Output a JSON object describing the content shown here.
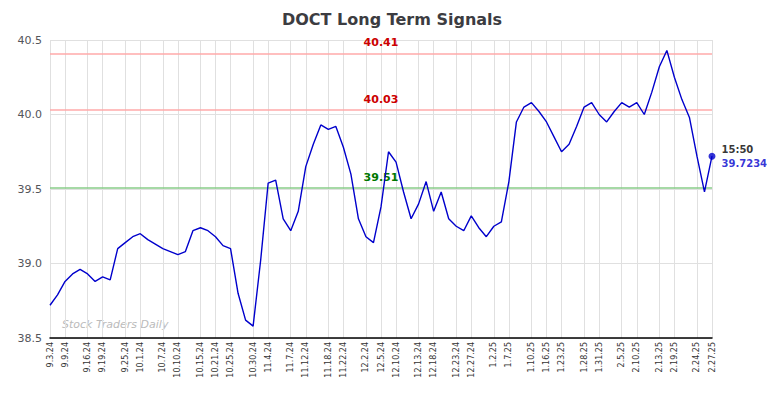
{
  "chart_data": {
    "type": "line",
    "title": "DOCT Long Term Signals",
    "categories": [
      "9.3.24",
      null,
      "9.9.24",
      null,
      null,
      "9.16.24",
      null,
      "9.19.24",
      null,
      null,
      "9.25.24",
      null,
      "10.1.24",
      null,
      null,
      "10.7.24",
      null,
      "10.10.24",
      null,
      null,
      "10.15.24",
      null,
      "10.21.24",
      null,
      "10.25.24",
      null,
      null,
      "10.30.24",
      null,
      "11.4.24",
      null,
      null,
      "11.7.24",
      null,
      "11.12.24",
      null,
      null,
      "11.18.24",
      null,
      "11.22.24",
      null,
      null,
      "12.2.24",
      null,
      "12.5.24",
      null,
      "12.10.24",
      null,
      null,
      "12.13.24",
      null,
      "12.18.24",
      null,
      null,
      "12.23.24",
      null,
      "12.27.24",
      null,
      null,
      "1.2.25",
      null,
      "1.7.25",
      null,
      null,
      "1.10.25",
      null,
      "1.16.25",
      null,
      "1.23.25",
      null,
      null,
      "1.28.25",
      null,
      "1.31.25",
      null,
      null,
      "2.5.25",
      null,
      "2.10.25",
      null,
      null,
      "2.13.25",
      null,
      "2.19.25",
      null,
      null,
      "2.24.25",
      null,
      "2.27.25"
    ],
    "values": [
      38.72,
      38.79,
      38.88,
      38.93,
      38.96,
      38.93,
      38.88,
      38.91,
      38.89,
      39.1,
      39.14,
      39.18,
      39.2,
      39.16,
      39.13,
      39.1,
      39.08,
      39.06,
      39.08,
      39.22,
      39.24,
      39.22,
      39.18,
      39.12,
      39.1,
      38.8,
      38.62,
      38.58,
      39.02,
      39.54,
      39.56,
      39.3,
      39.22,
      39.35,
      39.65,
      39.8,
      39.93,
      39.9,
      39.92,
      39.78,
      39.6,
      39.3,
      39.18,
      39.14,
      39.38,
      39.75,
      39.68,
      39.48,
      39.3,
      39.4,
      39.55,
      39.35,
      39.48,
      39.3,
      39.25,
      39.22,
      39.32,
      39.24,
      39.18,
      39.25,
      39.28,
      39.55,
      39.95,
      40.05,
      40.08,
      40.02,
      39.95,
      39.85,
      39.75,
      39.8,
      39.92,
      40.05,
      40.08,
      40.0,
      39.95,
      40.02,
      40.08,
      40.05,
      40.08,
      40.0,
      40.15,
      40.32,
      40.43,
      40.25,
      40.1,
      39.98,
      39.72,
      39.48,
      39.72
    ],
    "color": "#0000cc",
    "ylim": [
      38.5,
      40.5
    ],
    "yticks": [
      38.5,
      {
        "value": 39.0,
        "label": "39.0"
      },
      39.5,
      {
        "value": 40.0,
        "label": "40.0"
      },
      40.5
    ],
    "grid": true,
    "reference_lines": [
      {
        "value": 40.41,
        "label": "40.41",
        "color": "#ffaaaa",
        "label_color": "#cc0000"
      },
      {
        "value": 40.03,
        "label": "40.03",
        "color": "#ffaaaa",
        "label_color": "#cc0000"
      },
      {
        "value": 39.51,
        "label": "39.51",
        "color": "#88cc88",
        "label_color": "#007700"
      }
    ],
    "annotations": [
      {
        "text": "15:50",
        "color": "#000000"
      },
      {
        "text": "39.7234",
        "color": "#0000cc"
      }
    ],
    "watermark": {
      "text": "Stock Traders Daily",
      "color": "#bbbbbb"
    }
  }
}
